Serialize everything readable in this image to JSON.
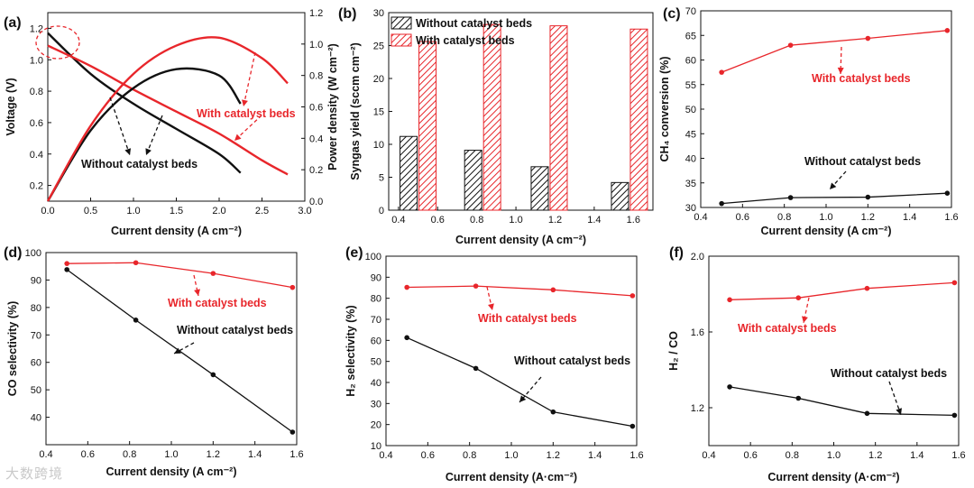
{
  "watermark": "大数跨境",
  "colors": {
    "red": "#e8262b",
    "black": "#111111"
  },
  "chart_data": [
    {
      "panel": "(a)",
      "type": "line",
      "xlabel": "Current density (A cm⁻²)",
      "ylabel": "Voltage (V)",
      "y2label": "Power density (W cm⁻²)",
      "xlim": [
        0,
        3.0
      ],
      "ylim": [
        0.1,
        1.3
      ],
      "y2lim": [
        0,
        1.2
      ],
      "xticks": [
        "0.0",
        "0.5",
        "1.0",
        "1.5",
        "2.0",
        "2.5",
        "3.0"
      ],
      "yticks": [
        "0.2",
        "0.4",
        "0.6",
        "0.8",
        "1.0",
        "1.2"
      ],
      "y2ticks": [
        "0.0",
        "0.2",
        "0.4",
        "0.6",
        "0.8",
        "1.0",
        "1.2"
      ],
      "series": [
        {
          "name": "Without catalyst beds",
          "kind": "voltage",
          "color": "#111111",
          "x": [
            0,
            0.5,
            1.0,
            1.5,
            2.0,
            2.25
          ],
          "y": [
            1.17,
            0.91,
            0.72,
            0.56,
            0.4,
            0.28
          ]
        },
        {
          "name": "With catalyst beds",
          "kind": "voltage",
          "color": "#e8262b",
          "x": [
            0,
            0.5,
            1.0,
            1.5,
            2.0,
            2.5,
            2.8
          ],
          "y": [
            1.09,
            0.96,
            0.81,
            0.67,
            0.53,
            0.36,
            0.27
          ]
        },
        {
          "name": "Without catalyst beds",
          "kind": "power",
          "color": "#111111",
          "x": [
            0,
            0.5,
            1.0,
            1.5,
            2.0,
            2.25
          ],
          "y": [
            0,
            0.45,
            0.72,
            0.84,
            0.8,
            0.62
          ]
        },
        {
          "name": "With catalyst beds",
          "kind": "power",
          "color": "#e8262b",
          "x": [
            0,
            0.5,
            1.0,
            1.5,
            2.0,
            2.5,
            2.8
          ],
          "y": [
            0,
            0.48,
            0.81,
            0.99,
            1.04,
            0.91,
            0.75
          ]
        }
      ],
      "annotations": [
        "With catalyst beds",
        "Without catalyst beds"
      ]
    },
    {
      "panel": "(b)",
      "type": "bar",
      "xlabel": "Current density (A cm⁻²)",
      "ylabel": "Syngas yield (sccm cm⁻²)",
      "xlim": [
        0.35,
        1.7
      ],
      "ylim": [
        0,
        30
      ],
      "xticks": [
        "0.4",
        "0.6",
        "0.8",
        "1.0",
        "1.2",
        "1.4",
        "1.6"
      ],
      "yticks": [
        "0",
        "5",
        "10",
        "15",
        "20",
        "25",
        "30"
      ],
      "categories": [
        0.5,
        0.83,
        1.17,
        1.58
      ],
      "series": [
        {
          "name": "Without catalyst beds",
          "values": [
            11.2,
            9.1,
            6.6,
            4.2
          ],
          "color": "#111111"
        },
        {
          "name": "With catalyst beds",
          "values": [
            25.6,
            28.2,
            28.0,
            27.5
          ],
          "color": "#e8262b"
        }
      ],
      "legend": [
        "Without catalyst beds",
        "With catalyst beds"
      ]
    },
    {
      "panel": "(c)",
      "type": "line",
      "xlabel": "Current density (A cm⁻²)",
      "ylabel": "CH₄ conversion (%)",
      "xlim": [
        0.4,
        1.6
      ],
      "ylim": [
        30,
        70
      ],
      "xticks": [
        "0.4",
        "0.6",
        "0.8",
        "1.0",
        "1.2",
        "1.4",
        "1.6"
      ],
      "yticks": [
        "30",
        "35",
        "40",
        "45",
        "50",
        "55",
        "60",
        "65",
        "70"
      ],
      "series": [
        {
          "name": "With catalyst beds",
          "color": "#e8262b",
          "x": [
            0.5,
            0.83,
            1.2,
            1.58
          ],
          "y": [
            57.5,
            63.0,
            64.4,
            66.0
          ]
        },
        {
          "name": "Without catalyst beds",
          "color": "#111111",
          "x": [
            0.5,
            0.83,
            1.2,
            1.58
          ],
          "y": [
            30.8,
            32.0,
            32.1,
            32.9
          ]
        }
      ],
      "annotations": [
        "With catalyst beds",
        "Without catalyst beds"
      ]
    },
    {
      "panel": "(d)",
      "type": "line",
      "xlabel": "Current density (A cm⁻²)",
      "ylabel": "CO selectivity (%)",
      "xlim": [
        0.4,
        1.6
      ],
      "ylim": [
        30,
        100
      ],
      "xticks": [
        "0.4",
        "0.6",
        "0.8",
        "1.0",
        "1.2",
        "1.4",
        "1.6"
      ],
      "yticks": [
        "40",
        "50",
        "60",
        "70",
        "80",
        "90",
        "100"
      ],
      "series": [
        {
          "name": "With catalyst beds",
          "color": "#e8262b",
          "x": [
            0.5,
            0.83,
            1.2,
            1.58
          ],
          "y": [
            96.0,
            96.3,
            92.4,
            87.3
          ]
        },
        {
          "name": "Without catalyst beds",
          "color": "#111111",
          "x": [
            0.5,
            0.83,
            1.2,
            1.58
          ],
          "y": [
            93.8,
            75.4,
            55.5,
            34.6
          ]
        }
      ],
      "annotations": [
        "With catalyst beds",
        "Without catalyst beds"
      ]
    },
    {
      "panel": "(e)",
      "type": "line",
      "xlabel": "Current density (A·cm⁻²)",
      "ylabel": "H₂ selectivity (%)",
      "xlim": [
        0.4,
        1.6
      ],
      "ylim": [
        10,
        100
      ],
      "xticks": [
        "0.4",
        "0.6",
        "0.8",
        "1.0",
        "1.2",
        "1.4",
        "1.6"
      ],
      "yticks": [
        "10",
        "20",
        "30",
        "40",
        "50",
        "60",
        "70",
        "80",
        "90",
        "100"
      ],
      "series": [
        {
          "name": "With catalyst beds",
          "color": "#e8262b",
          "x": [
            0.5,
            0.83,
            1.2,
            1.58
          ],
          "y": [
            85.2,
            85.8,
            84.0,
            81.2
          ]
        },
        {
          "name": "Without catalyst beds",
          "color": "#111111",
          "x": [
            0.5,
            0.83,
            1.2,
            1.58
          ],
          "y": [
            61.3,
            46.7,
            26.0,
            19.2
          ]
        }
      ],
      "annotations": [
        "With catalyst beds",
        "Without catalyst beds"
      ]
    },
    {
      "panel": "(f)",
      "type": "line",
      "xlabel": "Current density (A·cm⁻²)",
      "ylabel": "H₂ / CO",
      "xlim": [
        0.4,
        1.6
      ],
      "ylim": [
        1.0,
        2.0
      ],
      "xticks": [
        "0.4",
        "0.6",
        "0.8",
        "1.0",
        "1.2",
        "1.4",
        "1.6"
      ],
      "yticks": [
        "1.2",
        "1.6",
        "2.0"
      ],
      "series": [
        {
          "name": "With catalyst beds",
          "color": "#e8262b",
          "x": [
            0.5,
            0.83,
            1.16,
            1.58
          ],
          "y": [
            1.77,
            1.78,
            1.83,
            1.86
          ]
        },
        {
          "name": "Without catalyst beds",
          "color": "#111111",
          "x": [
            0.5,
            0.83,
            1.16,
            1.58
          ],
          "y": [
            1.31,
            1.25,
            1.17,
            1.16
          ]
        }
      ],
      "annotations": [
        "With catalyst beds",
        "Without catalyst beds"
      ]
    }
  ]
}
